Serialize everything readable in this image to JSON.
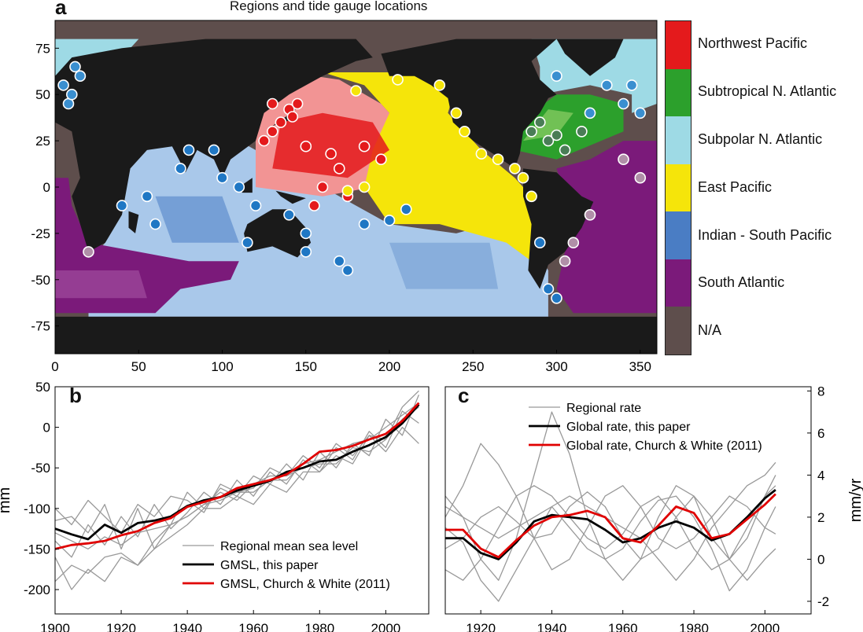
{
  "panel_a": {
    "label": "a",
    "title": "Regions and tide gauge locations",
    "colorbar": [
      {
        "name": "Northwest Pacific",
        "color": "#e41a1c"
      },
      {
        "name": "Subtropical N. Atlantic",
        "color": "#2ca02c"
      },
      {
        "name": "Subpolar N. Atlantic",
        "color": "#9edae5"
      },
      {
        "name": "East Pacific",
        "color": "#f5e50a"
      },
      {
        "name": "Indian - South Pacific",
        "color": "#4a7dc4"
      },
      {
        "name": "South Atlantic",
        "color": "#7b1a7a"
      },
      {
        "name": "N/A",
        "color": "#5e4e4c"
      }
    ]
  },
  "panel_b": {
    "label": "b"
  },
  "panel_c": {
    "label": "c"
  },
  "chart_data": [
    {
      "type": "heatmap",
      "title": "Regions and tide gauge locations",
      "xlabel": "",
      "ylabel": "",
      "xlim": [
        0,
        360
      ],
      "ylim": [
        -90,
        90
      ],
      "x_ticks": [
        "0",
        "50",
        "100",
        "150",
        "200",
        "250",
        "300",
        "350"
      ],
      "y_ticks": [
        "75",
        "50",
        "25",
        "0",
        "-25",
        "-50",
        "-75"
      ],
      "grid": false,
      "legend": "right colorbar"
    },
    {
      "type": "line",
      "xlabel": "",
      "ylabel": "mm",
      "xlim": [
        1900,
        2013
      ],
      "ylim": [
        -230,
        50
      ],
      "x_ticks": [
        "1900",
        "1920",
        "1940",
        "1960",
        "1980",
        "2000"
      ],
      "y_ticks": [
        "50",
        "0",
        "-50",
        "-100",
        "-150",
        "-200"
      ],
      "legend": "bottom-right",
      "legend_entries": [
        "Regional mean sea level",
        "GMSL, this paper",
        "GMSL, Church & White (2011)"
      ],
      "x": [
        1900,
        1905,
        1910,
        1915,
        1920,
        1925,
        1930,
        1935,
        1940,
        1945,
        1950,
        1955,
        1960,
        1965,
        1970,
        1975,
        1980,
        1985,
        1990,
        1995,
        2000,
        2005,
        2010
      ],
      "series": [
        {
          "name": "GMSL, this paper",
          "color": "#000000",
          "values": [
            -125,
            -132,
            -138,
            -120,
            -130,
            -118,
            -115,
            -110,
            -97,
            -90,
            -86,
            -78,
            -72,
            -66,
            -55,
            -50,
            -42,
            -40,
            -30,
            -22,
            -12,
            5,
            28
          ]
        },
        {
          "name": "GMSL, Church & White (2011)",
          "color": "#e00000",
          "values": [
            -150,
            -145,
            -143,
            -140,
            -133,
            -128,
            -118,
            -112,
            -98,
            -92,
            -86,
            -75,
            -70,
            -65,
            -58,
            -45,
            -30,
            -28,
            -23,
            -15,
            -8,
            8,
            30
          ]
        },
        {
          "name": "Regional mean sea level",
          "color": "#999999",
          "values": [
            -115,
            -110,
            -130,
            -95,
            -150,
            -100,
            -150,
            -120,
            -80,
            -100,
            -75,
            -85,
            -60,
            -70,
            -45,
            -65,
            -30,
            -50,
            -20,
            -35,
            10,
            -10,
            40
          ]
        },
        {
          "name": "Regional mean sea level",
          "color": "#999999",
          "values": [
            -140,
            -160,
            -120,
            -145,
            -110,
            -135,
            -95,
            -125,
            -105,
            -80,
            -95,
            -65,
            -85,
            -55,
            -70,
            -40,
            -55,
            -25,
            -40,
            -5,
            -25,
            20,
            5
          ]
        },
        {
          "name": "Regional mean sea level",
          "color": "#999999",
          "values": [
            -190,
            -170,
            -180,
            -160,
            -155,
            -170,
            -140,
            -120,
            -110,
            -95,
            -80,
            -90,
            -70,
            -60,
            -60,
            -50,
            -45,
            -45,
            -25,
            -30,
            -15,
            10,
            25
          ]
        },
        {
          "name": "Regional mean sea level",
          "color": "#999999",
          "values": [
            -100,
            -120,
            -90,
            -110,
            -130,
            -95,
            -110,
            -85,
            -90,
            -105,
            -70,
            -80,
            -75,
            -50,
            -60,
            -35,
            -50,
            -20,
            -35,
            -10,
            -30,
            0,
            -20
          ]
        },
        {
          "name": "Regional mean sea level",
          "color": "#999999",
          "values": [
            -160,
            -200,
            -175,
            -190,
            -160,
            -170,
            -150,
            -135,
            -120,
            -100,
            -100,
            -85,
            -95,
            -70,
            -80,
            -55,
            -55,
            -35,
            -45,
            -10,
            -15,
            25,
            45
          ]
        },
        {
          "name": "Regional mean sea level",
          "color": "#999999",
          "values": [
            -130,
            -140,
            -150,
            -135,
            -145,
            -130,
            -125,
            -120,
            -110,
            -95,
            -90,
            -80,
            -80,
            -65,
            -65,
            -45,
            -40,
            -30,
            -20,
            -15,
            0,
            15,
            30
          ]
        }
      ]
    },
    {
      "type": "line",
      "xlabel": "",
      "ylabel": "mm/yr",
      "xlim": [
        1910,
        2013
      ],
      "ylim": [
        -2.6,
        8.2
      ],
      "x_ticks": [
        "1920",
        "1940",
        "1960",
        "1980",
        "2000"
      ],
      "y_ticks": [
        "8",
        "6",
        "4",
        "2",
        "0",
        "-2"
      ],
      "legend": "top-center",
      "legend_entries": [
        "Regional rate",
        "Global rate, this paper",
        "Global rate, Church & White (2011)"
      ],
      "x": [
        1910,
        1915,
        1920,
        1925,
        1930,
        1935,
        1940,
        1945,
        1950,
        1955,
        1960,
        1965,
        1970,
        1975,
        1980,
        1985,
        1990,
        1995,
        2000,
        2003
      ],
      "series": [
        {
          "name": "Global rate, this paper",
          "color": "#000000",
          "values": [
            1.0,
            1.0,
            0.3,
            0.0,
            0.8,
            1.8,
            2.1,
            2.0,
            1.9,
            1.4,
            0.8,
            1.0,
            1.5,
            1.8,
            1.5,
            0.9,
            1.2,
            2.0,
            2.9,
            3.3
          ]
        },
        {
          "name": "Global rate, Church & White (2011)",
          "color": "#e00000",
          "values": [
            1.4,
            1.4,
            0.5,
            0.1,
            0.9,
            1.6,
            2.0,
            2.1,
            2.3,
            2.0,
            1.0,
            0.8,
            1.6,
            2.5,
            2.2,
            1.0,
            1.2,
            1.9,
            2.6,
            3.1
          ]
        },
        {
          "name": "Regional rate",
          "color": "#999999",
          "values": [
            2.0,
            3.5,
            5.5,
            4.5,
            3.0,
            1.0,
            -0.5,
            0.0,
            1.5,
            3.0,
            3.5,
            2.5,
            1.0,
            0.5,
            1.0,
            2.0,
            3.0,
            2.5,
            1.5,
            1.2
          ]
        },
        {
          "name": "Regional rate",
          "color": "#999999",
          "values": [
            3.0,
            2.0,
            0.0,
            -1.0,
            1.0,
            4.0,
            7.0,
            5.0,
            2.0,
            0.0,
            -1.0,
            0.0,
            2.0,
            3.5,
            3.0,
            1.0,
            0.0,
            1.0,
            3.0,
            4.0
          ]
        },
        {
          "name": "Regional rate",
          "color": "#999999",
          "values": [
            0.5,
            1.0,
            2.0,
            2.5,
            1.8,
            1.0,
            1.2,
            2.5,
            3.2,
            2.5,
            1.0,
            0.0,
            0.5,
            2.0,
            3.0,
            2.0,
            0.0,
            -1.0,
            0.0,
            0.5
          ]
        },
        {
          "name": "Regional rate",
          "color": "#999999",
          "values": [
            -0.5,
            -1.0,
            0.0,
            1.5,
            3.0,
            3.5,
            3.0,
            2.0,
            1.0,
            0.5,
            1.2,
            2.5,
            3.0,
            2.0,
            0.5,
            -0.5,
            0.0,
            1.5,
            3.0,
            3.5
          ]
        },
        {
          "name": "Regional rate",
          "color": "#999999",
          "values": [
            1.5,
            0.8,
            -1.0,
            -2.0,
            -0.5,
            1.0,
            2.5,
            3.0,
            2.5,
            2.0,
            1.5,
            1.0,
            0.0,
            -1.0,
            0.0,
            1.5,
            2.5,
            3.5,
            4.0,
            4.6
          ]
        },
        {
          "name": "Regional rate",
          "color": "#999999",
          "values": [
            2.5,
            2.0,
            1.5,
            1.0,
            1.5,
            2.0,
            2.5,
            1.5,
            0.5,
            0.0,
            0.5,
            1.8,
            2.8,
            3.0,
            2.0,
            0.5,
            -1.5,
            -0.5,
            1.5,
            2.5
          ]
        }
      ]
    }
  ]
}
